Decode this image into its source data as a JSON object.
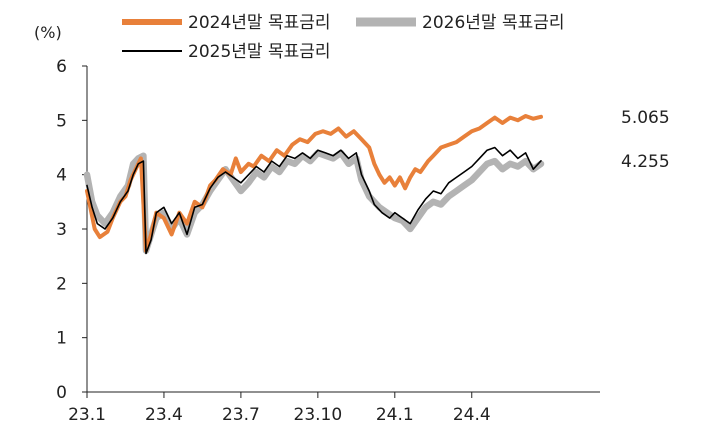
{
  "chart_data": {
    "type": "line",
    "title": "",
    "ylabel": "(%)",
    "xlabel": "",
    "ylim": [
      0,
      6
    ],
    "yticks": [
      0,
      1,
      2,
      3,
      4,
      5,
      6
    ],
    "xlim": [
      0,
      20
    ],
    "xticks": [
      {
        "x": 0,
        "label": "23.1"
      },
      {
        "x": 3,
        "label": "23.4"
      },
      {
        "x": 6,
        "label": "23.7"
      },
      {
        "x": 9,
        "label": "23.10"
      },
      {
        "x": 12,
        "label": "24.1"
      },
      {
        "x": 15,
        "label": "24.4"
      }
    ],
    "grid": false,
    "legend_placement": "top",
    "series": [
      {
        "name": "2024년말 목표금리",
        "color": "#e8803a",
        "end_label": "5.065",
        "points": [
          [
            0.0,
            3.7
          ],
          [
            0.3,
            3.0
          ],
          [
            0.5,
            2.85
          ],
          [
            0.8,
            2.95
          ],
          [
            1.0,
            3.2
          ],
          [
            1.3,
            3.5
          ],
          [
            1.5,
            3.6
          ],
          [
            1.7,
            3.9
          ],
          [
            1.9,
            4.1
          ],
          [
            2.1,
            4.3
          ],
          [
            2.3,
            2.6
          ],
          [
            2.5,
            2.9
          ],
          [
            2.7,
            3.3
          ],
          [
            3.0,
            3.2
          ],
          [
            3.3,
            2.9
          ],
          [
            3.6,
            3.3
          ],
          [
            3.9,
            3.1
          ],
          [
            4.2,
            3.5
          ],
          [
            4.5,
            3.4
          ],
          [
            4.8,
            3.8
          ],
          [
            5.0,
            3.9
          ],
          [
            5.3,
            4.1
          ],
          [
            5.6,
            4.0
          ],
          [
            5.8,
            4.3
          ],
          [
            6.0,
            4.05
          ],
          [
            6.3,
            4.2
          ],
          [
            6.5,
            4.15
          ],
          [
            6.8,
            4.35
          ],
          [
            7.1,
            4.25
          ],
          [
            7.4,
            4.45
          ],
          [
            7.7,
            4.35
          ],
          [
            8.0,
            4.55
          ],
          [
            8.3,
            4.65
          ],
          [
            8.6,
            4.6
          ],
          [
            8.9,
            4.75
          ],
          [
            9.2,
            4.8
          ],
          [
            9.5,
            4.75
          ],
          [
            9.8,
            4.85
          ],
          [
            10.1,
            4.7
          ],
          [
            10.4,
            4.8
          ],
          [
            10.7,
            4.65
          ],
          [
            11.0,
            4.5
          ],
          [
            11.2,
            4.2
          ],
          [
            11.4,
            4.0
          ],
          [
            11.6,
            3.85
          ],
          [
            11.8,
            3.95
          ],
          [
            12.0,
            3.8
          ],
          [
            12.2,
            3.95
          ],
          [
            12.4,
            3.75
          ],
          [
            12.6,
            3.95
          ],
          [
            12.8,
            4.1
          ],
          [
            13.0,
            4.05
          ],
          [
            13.3,
            4.25
          ],
          [
            13.5,
            4.35
          ],
          [
            13.8,
            4.5
          ],
          [
            14.1,
            4.55
          ],
          [
            14.4,
            4.6
          ],
          [
            14.7,
            4.7
          ],
          [
            15.0,
            4.8
          ],
          [
            15.3,
            4.85
          ],
          [
            15.6,
            4.95
          ],
          [
            15.9,
            5.05
          ],
          [
            16.2,
            4.95
          ],
          [
            16.5,
            5.05
          ],
          [
            16.8,
            5.0
          ],
          [
            17.1,
            5.08
          ],
          [
            17.4,
            5.03
          ],
          [
            17.7,
            5.065
          ]
        ]
      },
      {
        "name": "2026년말 목표금리",
        "color": "#b3b3b3",
        "end_label": "",
        "points": [
          [
            0.0,
            4.0
          ],
          [
            0.2,
            3.5
          ],
          [
            0.4,
            3.25
          ],
          [
            0.7,
            3.1
          ],
          [
            1.0,
            3.3
          ],
          [
            1.3,
            3.6
          ],
          [
            1.6,
            3.8
          ],
          [
            1.8,
            4.2
          ],
          [
            2.0,
            4.3
          ],
          [
            2.2,
            4.35
          ],
          [
            2.3,
            2.6
          ],
          [
            2.5,
            2.9
          ],
          [
            2.7,
            3.2
          ],
          [
            3.0,
            3.3
          ],
          [
            3.3,
            3.0
          ],
          [
            3.6,
            3.2
          ],
          [
            3.9,
            2.9
          ],
          [
            4.2,
            3.3
          ],
          [
            4.5,
            3.45
          ],
          [
            4.8,
            3.7
          ],
          [
            5.1,
            3.9
          ],
          [
            5.4,
            4.1
          ],
          [
            5.7,
            3.9
          ],
          [
            6.0,
            3.7
          ],
          [
            6.3,
            3.85
          ],
          [
            6.6,
            4.05
          ],
          [
            6.9,
            3.95
          ],
          [
            7.2,
            4.15
          ],
          [
            7.5,
            4.05
          ],
          [
            7.8,
            4.25
          ],
          [
            8.1,
            4.2
          ],
          [
            8.4,
            4.35
          ],
          [
            8.7,
            4.25
          ],
          [
            9.0,
            4.4
          ],
          [
            9.3,
            4.35
          ],
          [
            9.6,
            4.3
          ],
          [
            9.9,
            4.4
          ],
          [
            10.2,
            4.2
          ],
          [
            10.5,
            4.3
          ],
          [
            10.7,
            3.9
          ],
          [
            11.0,
            3.6
          ],
          [
            11.2,
            3.5
          ],
          [
            11.4,
            3.4
          ],
          [
            11.7,
            3.3
          ],
          [
            12.0,
            3.2
          ],
          [
            12.3,
            3.15
          ],
          [
            12.6,
            3.0
          ],
          [
            12.9,
            3.2
          ],
          [
            13.2,
            3.4
          ],
          [
            13.5,
            3.5
          ],
          [
            13.8,
            3.45
          ],
          [
            14.1,
            3.6
          ],
          [
            14.4,
            3.7
          ],
          [
            14.7,
            3.8
          ],
          [
            15.0,
            3.9
          ],
          [
            15.3,
            4.05
          ],
          [
            15.6,
            4.2
          ],
          [
            15.9,
            4.25
          ],
          [
            16.2,
            4.1
          ],
          [
            16.5,
            4.2
          ],
          [
            16.8,
            4.15
          ],
          [
            17.1,
            4.25
          ],
          [
            17.4,
            4.1
          ],
          [
            17.7,
            4.2
          ]
        ]
      },
      {
        "name": "2025년말 목표금리",
        "color": "#000000",
        "end_label": "4.255",
        "points": [
          [
            0.0,
            3.8
          ],
          [
            0.2,
            3.4
          ],
          [
            0.4,
            3.1
          ],
          [
            0.7,
            3.0
          ],
          [
            1.0,
            3.2
          ],
          [
            1.3,
            3.5
          ],
          [
            1.6,
            3.7
          ],
          [
            1.8,
            4.0
          ],
          [
            2.0,
            4.2
          ],
          [
            2.2,
            4.25
          ],
          [
            2.3,
            2.55
          ],
          [
            2.5,
            2.8
          ],
          [
            2.7,
            3.3
          ],
          [
            3.0,
            3.4
          ],
          [
            3.3,
            3.1
          ],
          [
            3.6,
            3.3
          ],
          [
            3.9,
            2.9
          ],
          [
            4.2,
            3.4
          ],
          [
            4.5,
            3.45
          ],
          [
            4.8,
            3.75
          ],
          [
            5.1,
            3.95
          ],
          [
            5.4,
            4.05
          ],
          [
            5.7,
            3.95
          ],
          [
            6.0,
            3.85
          ],
          [
            6.3,
            4.0
          ],
          [
            6.6,
            4.15
          ],
          [
            6.9,
            4.05
          ],
          [
            7.2,
            4.25
          ],
          [
            7.5,
            4.15
          ],
          [
            7.8,
            4.35
          ],
          [
            8.1,
            4.3
          ],
          [
            8.4,
            4.4
          ],
          [
            8.7,
            4.3
          ],
          [
            9.0,
            4.45
          ],
          [
            9.3,
            4.4
          ],
          [
            9.6,
            4.35
          ],
          [
            9.9,
            4.45
          ],
          [
            10.2,
            4.3
          ],
          [
            10.5,
            4.4
          ],
          [
            10.7,
            4.0
          ],
          [
            11.0,
            3.7
          ],
          [
            11.2,
            3.45
          ],
          [
            11.5,
            3.3
          ],
          [
            11.8,
            3.2
          ],
          [
            12.0,
            3.3
          ],
          [
            12.3,
            3.2
          ],
          [
            12.6,
            3.1
          ],
          [
            12.9,
            3.35
          ],
          [
            13.2,
            3.55
          ],
          [
            13.5,
            3.7
          ],
          [
            13.8,
            3.65
          ],
          [
            14.1,
            3.85
          ],
          [
            14.4,
            3.95
          ],
          [
            14.7,
            4.05
          ],
          [
            15.0,
            4.15
          ],
          [
            15.3,
            4.3
          ],
          [
            15.6,
            4.45
          ],
          [
            15.9,
            4.5
          ],
          [
            16.2,
            4.35
          ],
          [
            16.5,
            4.45
          ],
          [
            16.8,
            4.3
          ],
          [
            17.1,
            4.4
          ],
          [
            17.4,
            4.1
          ],
          [
            17.7,
            4.255
          ]
        ]
      }
    ]
  }
}
